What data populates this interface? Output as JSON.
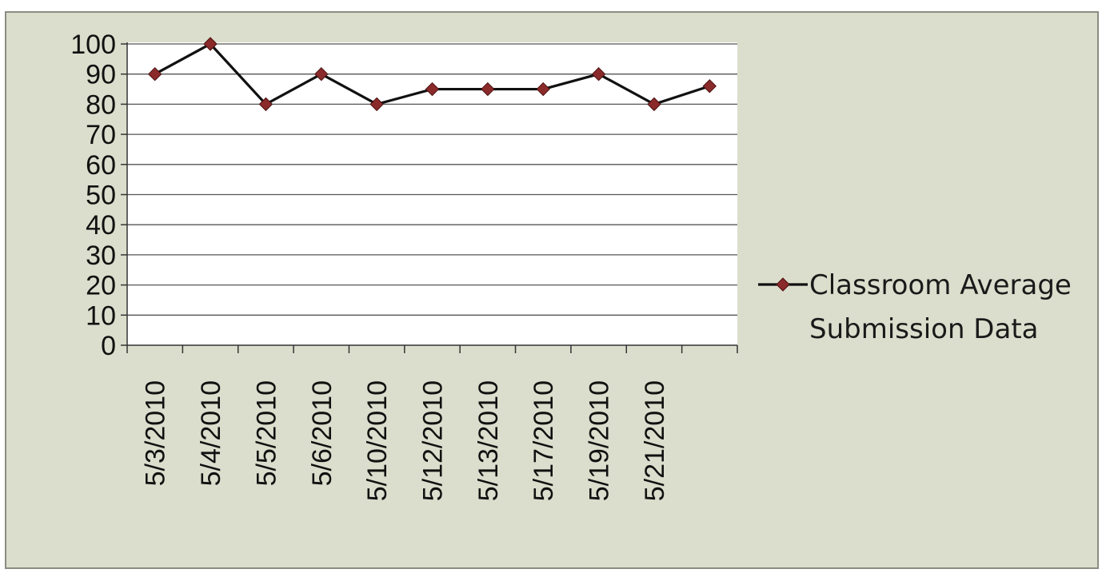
{
  "chart_data": {
    "type": "line",
    "title": "",
    "xlabel": "",
    "ylabel": "",
    "categories": [
      "5/3/2010",
      "5/4/2010",
      "5/5/2010",
      "5/6/2010",
      "5/10/2010",
      "5/12/2010",
      "5/13/2010",
      "5/17/2010",
      "5/19/2010",
      "5/21/2010",
      ""
    ],
    "series": [
      {
        "name": "Classroom Average Submission Data",
        "values": [
          90,
          100,
          80,
          90,
          80,
          85,
          85,
          85,
          90,
          80,
          86
        ],
        "color": "#8b2a2a",
        "line_color": "#111111",
        "marker": "diamond"
      }
    ],
    "ylim": [
      0,
      100
    ],
    "yticks": [
      0,
      10,
      20,
      30,
      40,
      50,
      60,
      70,
      80,
      90,
      100
    ],
    "grid": true,
    "legend": {
      "placement": "right",
      "lines": [
        "Classroom Average",
        "Submission Data"
      ]
    },
    "colors": {
      "background": "#dcdecd",
      "plot_area": "#ffffff",
      "gridline": "#555555"
    }
  }
}
